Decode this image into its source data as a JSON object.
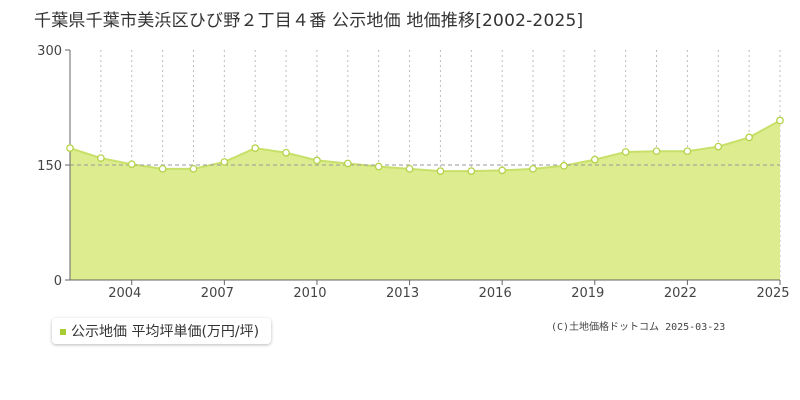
{
  "header": {
    "title": "千葉県千葉市美浜区ひび野２丁目４番 公示地価 地価推移[2002-2025]"
  },
  "footer": {
    "copyright": "(C)土地価格ドットコム 2025-03-23"
  },
  "chart_data": {
    "type": "area",
    "title": "千葉県千葉市美浜区ひび野２丁目４番 公示地価 地価推移[2002-2025]",
    "xlabel": "",
    "ylabel": "",
    "x": [
      2002,
      2003,
      2004,
      2005,
      2006,
      2007,
      2008,
      2009,
      2010,
      2011,
      2012,
      2013,
      2014,
      2015,
      2016,
      2017,
      2018,
      2019,
      2020,
      2021,
      2022,
      2023,
      2024,
      2025
    ],
    "series": [
      {
        "name": "公示地価 平均坪単価(万円/坪)",
        "values": [
          172,
          159,
          151,
          145,
          145,
          154,
          172,
          166,
          156,
          152,
          148,
          145,
          142,
          142,
          143,
          145,
          149,
          157,
          167,
          168,
          168,
          174,
          186,
          208
        ]
      }
    ],
    "xlim": [
      2002,
      2025
    ],
    "ylim": [
      0,
      300
    ],
    "y_ticks": [
      "0",
      "150",
      "300"
    ],
    "x_ticks": [
      "2004",
      "2007",
      "2010",
      "2013",
      "2016",
      "2019",
      "2022",
      "2025"
    ],
    "x_tick_values": [
      2004,
      2007,
      2010,
      2013,
      2016,
      2019,
      2022,
      2025
    ],
    "reference_line": 150,
    "grid": "vertical dotted",
    "legend_position": "bottom-left",
    "colors": {
      "area_fill": "#dcec8e",
      "line": "#c8e06a",
      "marker_fill": "#ffffff",
      "marker_stroke": "#b5d34a",
      "legend_marker": "#a8cc34",
      "grid": "#bdbdbd",
      "axis": "#666666"
    }
  }
}
